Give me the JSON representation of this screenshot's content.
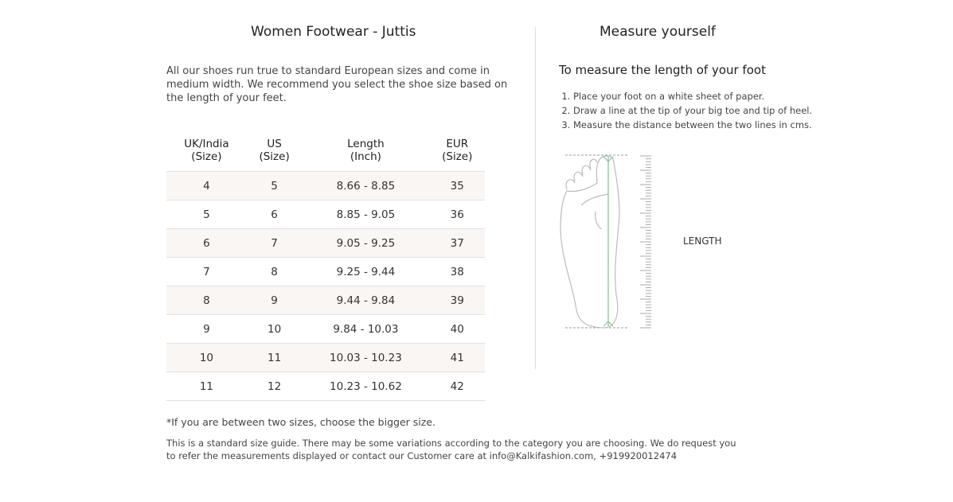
{
  "left": {
    "title": "Women Footwear - Juttis",
    "intro": "All our shoes run true to standard European sizes and come in medium width. We recommend you select the shoe size based on the length of your feet.",
    "table": {
      "headers": [
        [
          "UK/India",
          "(Size)"
        ],
        [
          "US",
          "(Size)"
        ],
        [
          "Length",
          "(Inch)"
        ],
        [
          "EUR",
          "(Size)"
        ]
      ],
      "rows": [
        [
          "4",
          "5",
          "8.66 - 8.85",
          "35"
        ],
        [
          "5",
          "6",
          "8.85 - 9.05",
          "36"
        ],
        [
          "6",
          "7",
          "9.05 - 9.25",
          "37"
        ],
        [
          "7",
          "8",
          "9.25 - 9.44",
          "38"
        ],
        [
          "8",
          "9",
          "9.44 - 9.84",
          "39"
        ],
        [
          "9",
          "10",
          "9.84 - 10.03",
          "40"
        ],
        [
          "10",
          "11",
          "10.03 - 10.23",
          "41"
        ],
        [
          "11",
          "12",
          "10.23 - 10.62",
          "42"
        ]
      ]
    }
  },
  "right": {
    "title": "Measure yourself",
    "subtitle": "To measure the length of your foot",
    "steps": [
      "Place your foot on a white sheet of paper.",
      "Draw a line at the tip of your big toe and tip of heel.",
      "Measure the distance between the two lines in cms."
    ],
    "diagram_label": "LENGTH",
    "arrow_color": "#7cc08a"
  },
  "footer": {
    "note": "*If you are between two sizes, choose the bigger size.",
    "disclaimer": "This is a standard size guide. There may be some variations according to the category you are choosing. We do request you to refer the measurements displayed or contact our Customer care at info@Kalkifashion.com, +919920012474"
  }
}
